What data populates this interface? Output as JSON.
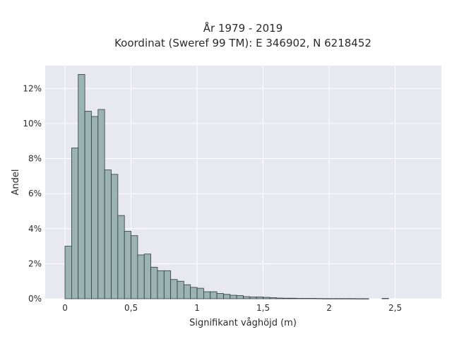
{
  "chart_data": {
    "type": "bar",
    "title_line1": "År 1979 - 2019",
    "title_line2": "Koordinat (Sweref 99 TM): E 346902, N 6218452",
    "xlabel": "Signifikant våghöjd (m)",
    "ylabel": "Andel",
    "xlim": [
      -0.15,
      2.85
    ],
    "ylim": [
      0,
      13.3
    ],
    "x_ticks": [
      {
        "value": 0,
        "label": "0"
      },
      {
        "value": 0.5,
        "label": "0,5"
      },
      {
        "value": 1,
        "label": "1"
      },
      {
        "value": 1.5,
        "label": "1,5"
      },
      {
        "value": 2,
        "label": "2"
      },
      {
        "value": 2.5,
        "label": "2,5"
      }
    ],
    "y_ticks": [
      {
        "value": 0,
        "label": "0%"
      },
      {
        "value": 2,
        "label": "2%"
      },
      {
        "value": 4,
        "label": "4%"
      },
      {
        "value": 6,
        "label": "6%"
      },
      {
        "value": 8,
        "label": "8%"
      },
      {
        "value": 10,
        "label": "10%"
      },
      {
        "value": 12,
        "label": "12%"
      }
    ],
    "bin_width": 0.05,
    "bin_starts": [
      0,
      0.05,
      0.1,
      0.15,
      0.2,
      0.25,
      0.3,
      0.35,
      0.4,
      0.45,
      0.5,
      0.55,
      0.6,
      0.65,
      0.7,
      0.75,
      0.8,
      0.85,
      0.9,
      0.95,
      1.0,
      1.05,
      1.1,
      1.15,
      1.2,
      1.25,
      1.3,
      1.35,
      1.4,
      1.45,
      1.5,
      1.55,
      1.6,
      1.65,
      1.7,
      1.75,
      1.8,
      1.85,
      1.9,
      1.95,
      2.0,
      2.05,
      2.1,
      2.15,
      2.2,
      2.25,
      2.3,
      2.35,
      2.4
    ],
    "values": [
      3.0,
      8.6,
      12.8,
      10.7,
      10.4,
      10.8,
      7.35,
      7.1,
      4.75,
      3.85,
      3.6,
      2.5,
      2.55,
      1.8,
      1.6,
      1.6,
      1.1,
      1.0,
      0.8,
      0.65,
      0.6,
      0.4,
      0.4,
      0.3,
      0.25,
      0.2,
      0.18,
      0.12,
      0.1,
      0.1,
      0.08,
      0.06,
      0.04,
      0.03,
      0.03,
      0.02,
      0.02,
      0.02,
      0.015,
      0.01,
      0.01,
      0.01,
      0.01,
      0.008,
      0.005,
      0.005,
      0,
      0,
      0.02
    ],
    "colors": {
      "plot_background": "#e8e8f0",
      "grid": "#ffffff",
      "bar_fill": "#9bb4b3",
      "bar_stroke": "#2f3b3a"
    },
    "grid": true,
    "legend": "none"
  }
}
